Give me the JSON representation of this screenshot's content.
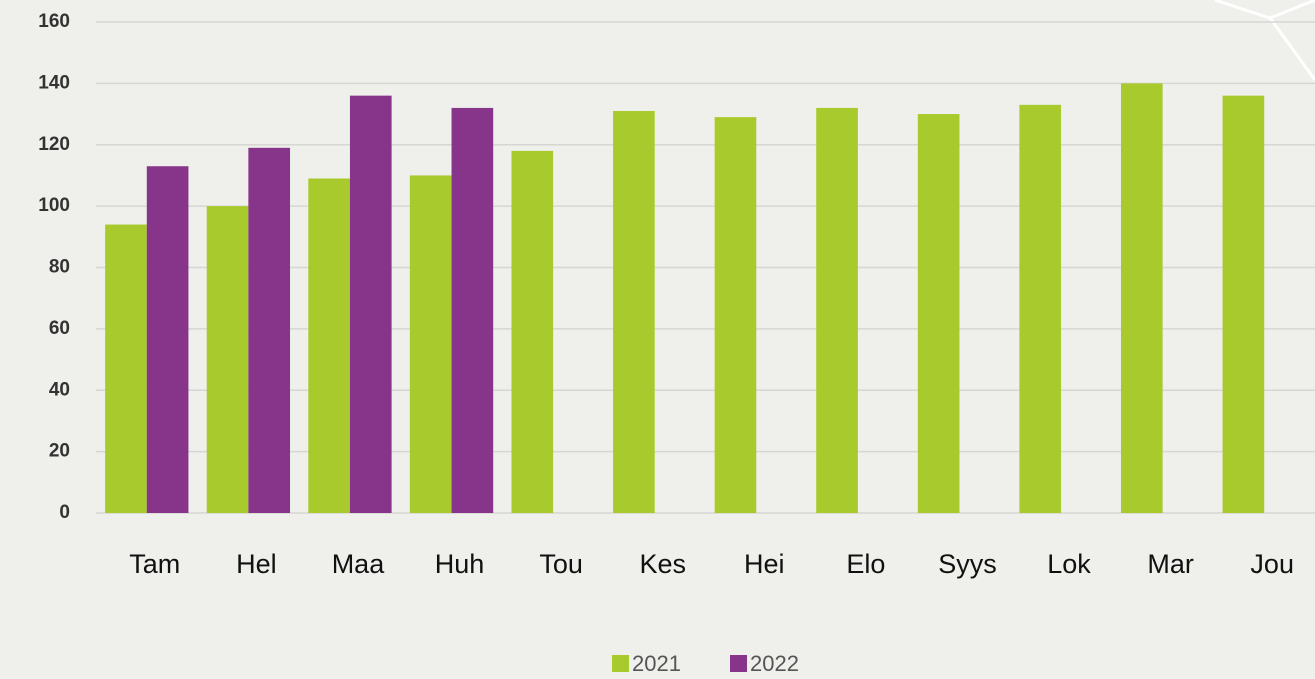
{
  "chart_data": {
    "type": "bar",
    "categories": [
      "Tam",
      "Hel",
      "Maa",
      "Huh",
      "Tou",
      "Kes",
      "Hei",
      "Elo",
      "Syys",
      "Lok",
      "Mar",
      "Jou"
    ],
    "series": [
      {
        "name": "2021",
        "color": "#a8ca2c",
        "values": [
          94,
          100,
          109,
          110,
          118,
          131,
          129,
          132,
          130,
          133,
          140,
          136
        ]
      },
      {
        "name": "2022",
        "color": "#87358a",
        "values": [
          113,
          119,
          136,
          132,
          null,
          null,
          null,
          null,
          null,
          null,
          null,
          null
        ]
      }
    ],
    "ylim": [
      0,
      160
    ],
    "yticks": [
      0,
      20,
      40,
      60,
      80,
      100,
      120,
      140,
      160
    ],
    "grid": true,
    "legend": "bottom"
  }
}
